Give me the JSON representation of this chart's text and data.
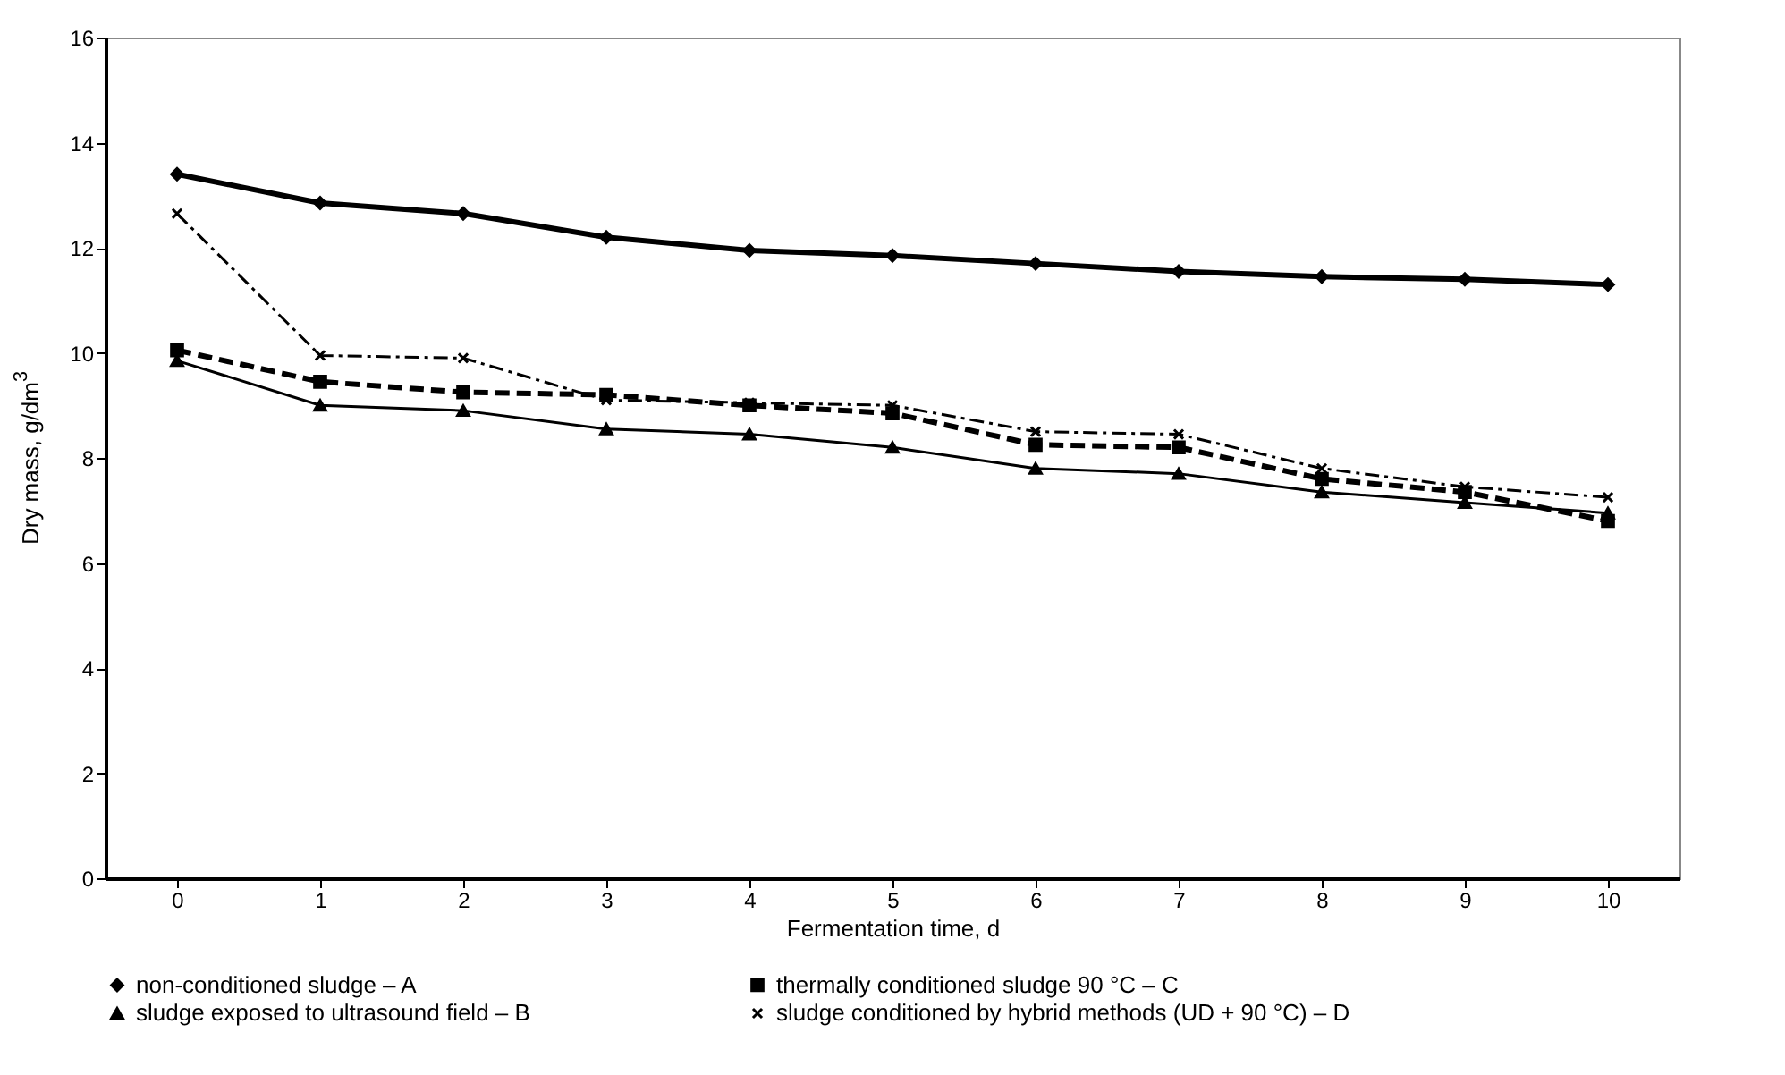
{
  "chart_data": {
    "type": "line",
    "xlabel": "Fermentation time, d",
    "ylabel": "Dry mass, g/dm$^{3}$",
    "categories": [
      "0",
      "1",
      "2",
      "3",
      "4",
      "5",
      "6",
      "7",
      "8",
      "9",
      "10"
    ],
    "ylim": [
      0,
      16
    ],
    "yticks": [
      0,
      2,
      4,
      6,
      8,
      10,
      12,
      14,
      16
    ],
    "grid": false,
    "legend": "bottom",
    "series": [
      {
        "name": "non-conditioned sludge – A",
        "color": "#000000",
        "marker": "diamond",
        "line_style": "solid",
        "values": [
          13.4,
          12.85,
          12.65,
          12.2,
          11.95,
          11.85,
          11.7,
          11.55,
          11.45,
          11.4,
          11.3
        ]
      },
      {
        "name": "thermally conditioned sludge 90 °C – C",
        "color": "#000000",
        "marker": "square",
        "line_style": "dashed",
        "values": [
          10.05,
          9.45,
          9.25,
          9.2,
          9.0,
          8.85,
          8.25,
          8.2,
          7.6,
          7.35,
          6.8
        ]
      },
      {
        "name": "sludge exposed to ultrasound field – B",
        "color": "#000000",
        "marker": "triangle",
        "line_style": "solid",
        "values": [
          9.85,
          9.0,
          8.9,
          8.55,
          8.45,
          8.2,
          7.8,
          7.7,
          7.35,
          7.15,
          6.95
        ]
      },
      {
        "name": "sludge conditioned by hybrid methods (UD + 90 °C) – D",
        "color": "#000000",
        "marker": "cross",
        "line_style": "dashed",
        "values": [
          12.65,
          9.95,
          9.9,
          9.1,
          9.05,
          9.0,
          8.5,
          8.45,
          7.8,
          7.45,
          7.25
        ]
      }
    ]
  }
}
